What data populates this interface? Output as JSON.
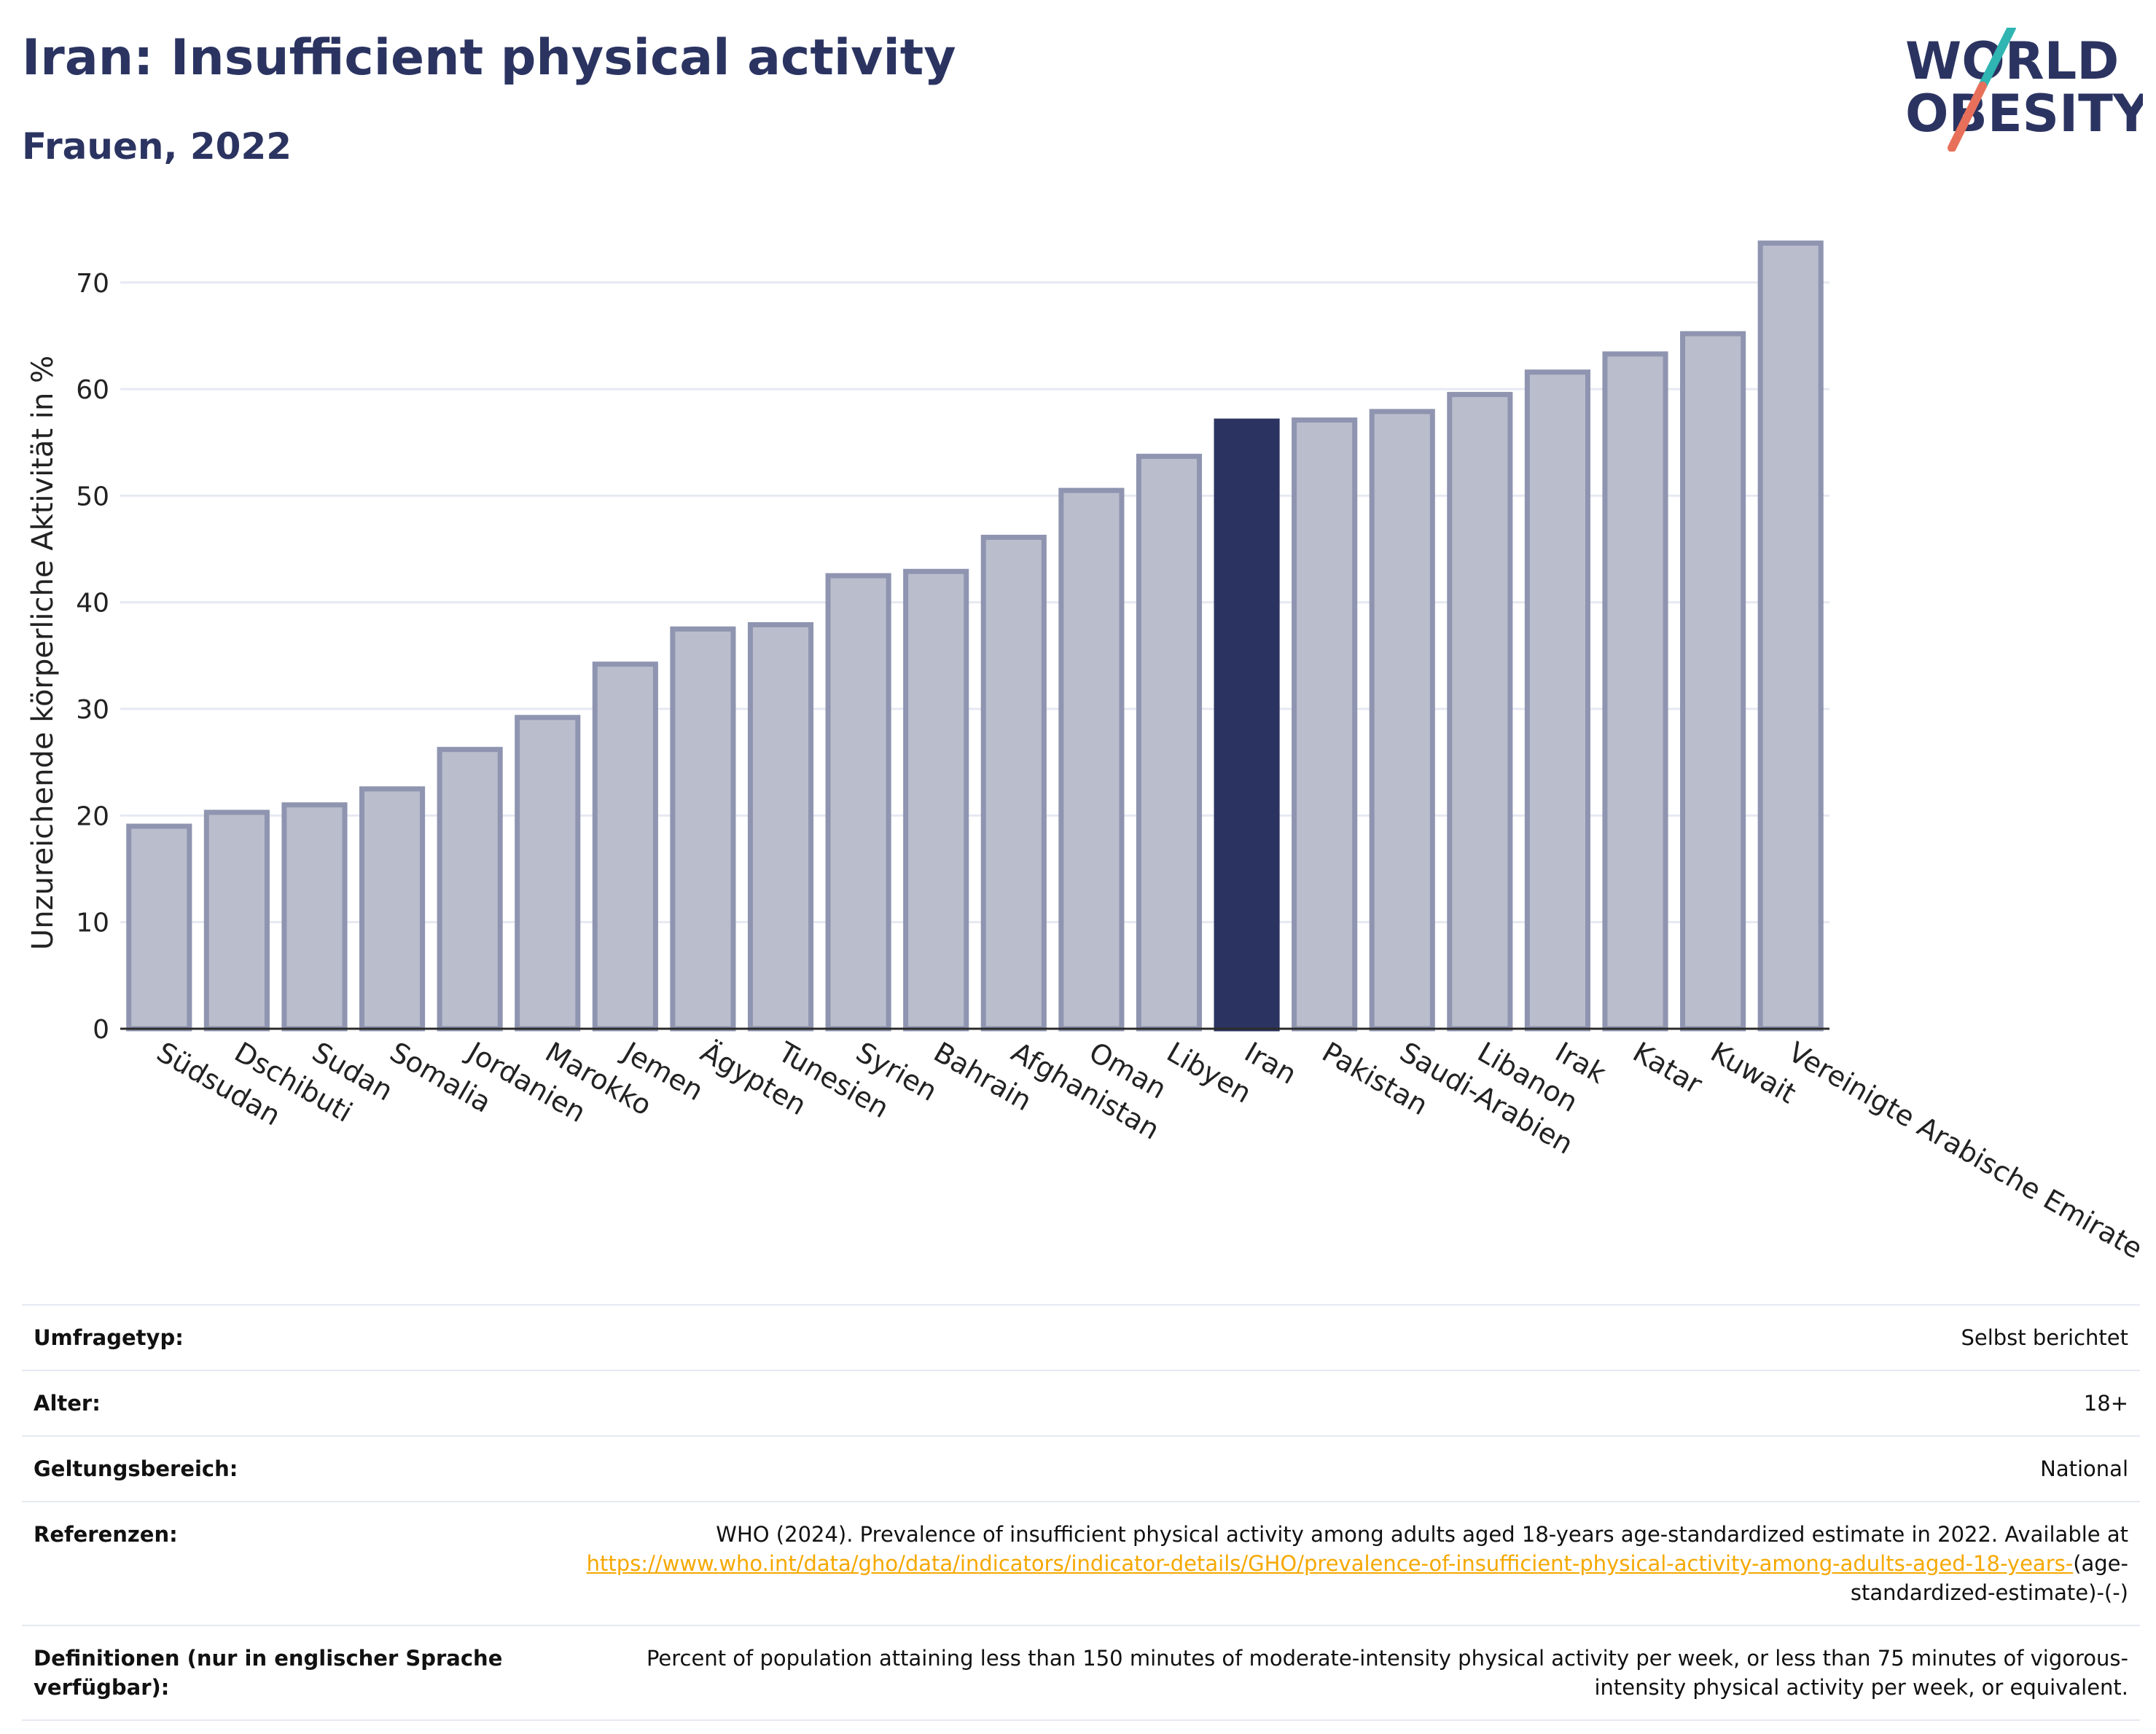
{
  "header": {
    "title": "Iran: Insufficient physical activity",
    "subtitle": "Frauen, 2022"
  },
  "logo": {
    "line1": "WORLD",
    "line2": "OBESITY",
    "colors": {
      "text": "#2b3461",
      "teal": "#2fb5b2",
      "coral": "#e8705b"
    }
  },
  "colors": {
    "highlight": "#2b3461",
    "bar": "#babdcc",
    "bar_border": "#8f95b0",
    "grid": "#e6e9f2",
    "axis": "#2b2b2b"
  },
  "chart_data": {
    "type": "bar",
    "title": "Iran: Insufficient physical activity",
    "subtitle": "Frauen, 2022",
    "ylabel": "Unzureichende körperliche Aktivität in %",
    "xlabel": "",
    "ylim": [
      0,
      76
    ],
    "yticks": [
      0,
      10,
      20,
      30,
      40,
      50,
      60,
      70
    ],
    "grid": true,
    "highlight": "Iran",
    "categories": [
      "Südsudan",
      "Dschibuti",
      "Sudan",
      "Somalia",
      "Jordanien",
      "Marokko",
      "Jemen",
      "Ägypten",
      "Tunesien",
      "Syrien",
      "Bahrain",
      "Afghanistan",
      "Oman",
      "Libyen",
      "Iran",
      "Pakistan",
      "Saudi-Arabien",
      "Libanon",
      "Irak",
      "Katar",
      "Kuwait",
      "Vereinigte Arabische Emirate"
    ],
    "values": [
      19.0,
      20.3,
      21.0,
      22.5,
      26.2,
      29.2,
      34.2,
      37.5,
      37.9,
      42.5,
      42.9,
      46.1,
      50.5,
      53.7,
      57.0,
      57.1,
      57.9,
      59.5,
      61.6,
      63.3,
      65.2,
      73.7
    ]
  },
  "info": {
    "rows": [
      {
        "label": "Umfragetyp:",
        "value": "Selbst berichtet"
      },
      {
        "label": "Alter:",
        "value": "18+"
      },
      {
        "label": "Geltungsbereich:",
        "value": "National"
      }
    ],
    "references": {
      "label": "Referenzen:",
      "text": "WHO (2024). Prevalence of insufficient physical activity among adults aged 18-years age-standardized estimate in 2022. Available at",
      "link": "https://www.who.int/data/gho/data/indicators/indicator-details/GHO/prevalence-of-insufficient-physical-activity-among-adults-aged-18-years-",
      "suffix": "(age-standardized-estimate)-(-)"
    },
    "definitions": {
      "label": "Definitionen (nur in englischer Sprache verfügbar):",
      "value": "Percent of population attaining less than 150 minutes of moderate-intensity physical activity per week, or less than 75 minutes of vigorous-intensity physical activity per week, or equivalent."
    }
  }
}
